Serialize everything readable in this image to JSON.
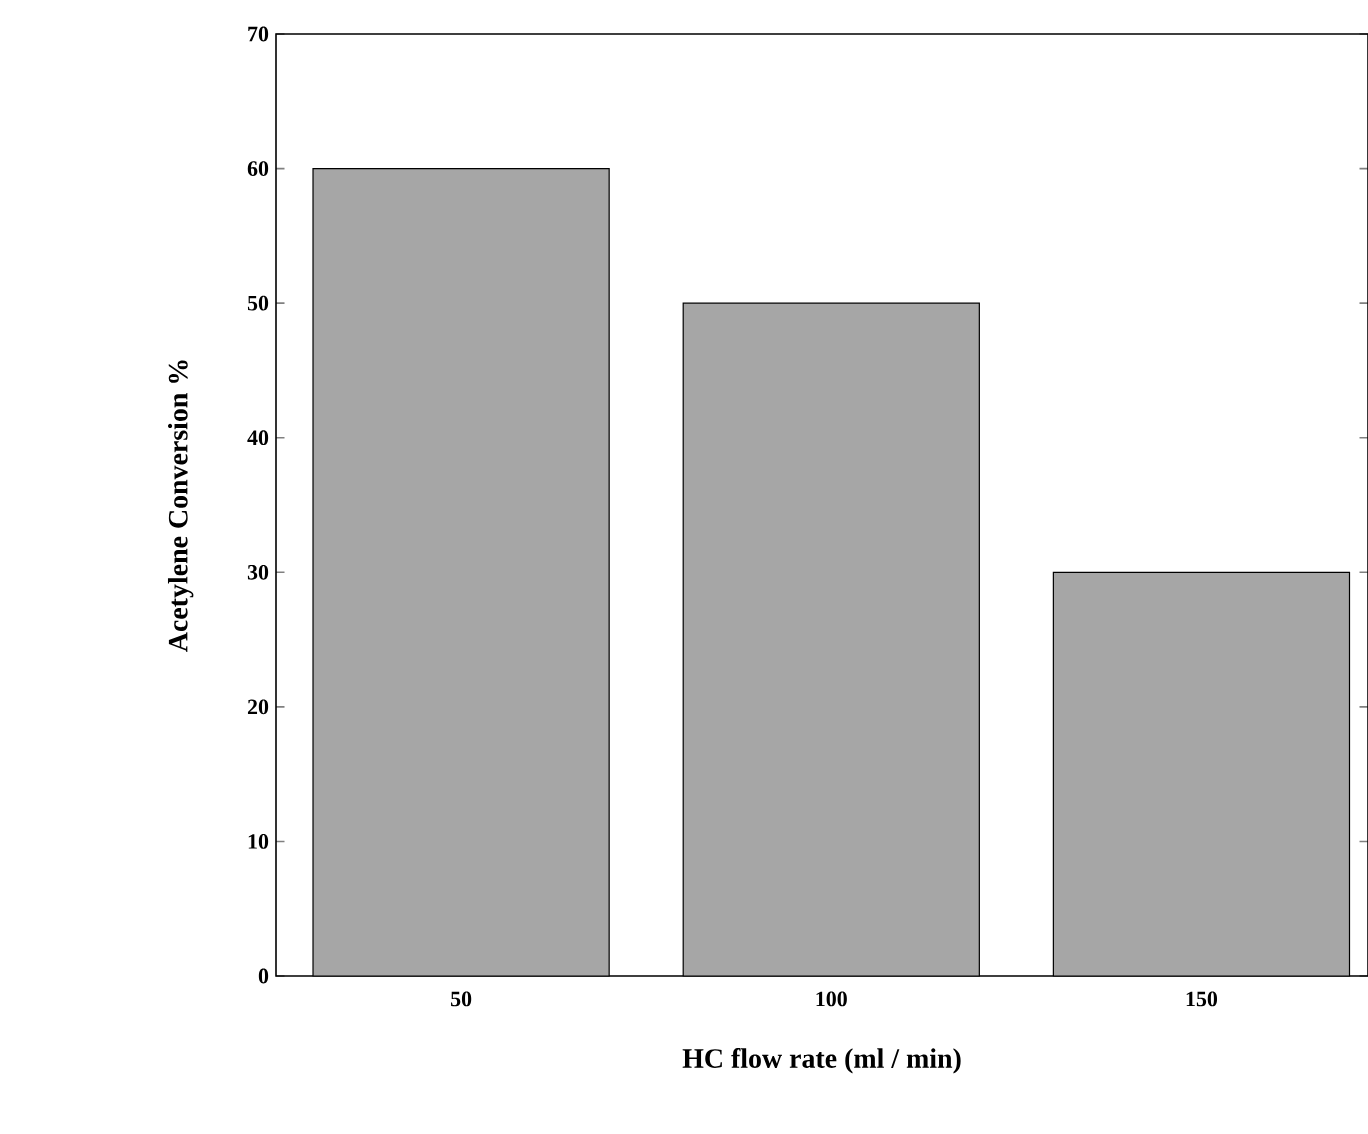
{
  "chart_data": {
    "type": "bar",
    "xlabel": "HC flow rate (ml / min)",
    "ylabel": "Acetylene Conversion %",
    "categories": [
      "50",
      "100",
      "150"
    ],
    "values": [
      60,
      50,
      30
    ],
    "color": "#a6a6a6",
    "ylim": [
      0,
      70
    ],
    "yticks": [
      0,
      10,
      20,
      30,
      40,
      50,
      60,
      70
    ],
    "grid": false
  }
}
